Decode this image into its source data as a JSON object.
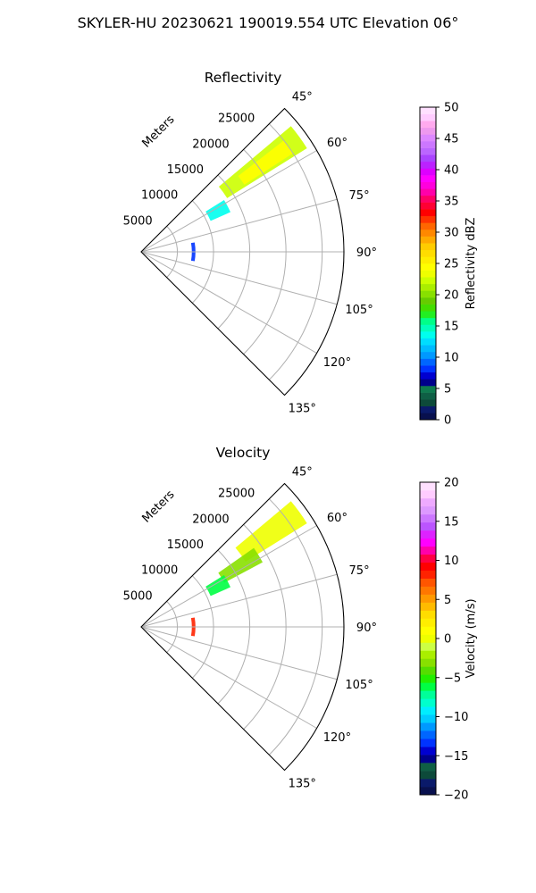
{
  "figure": {
    "title": "SKYLER-HU  20230621  190019.554 UTC Elevation 06°"
  },
  "chart_data": [
    {
      "type": "heatmap",
      "title": "Reflectivity",
      "radial_label": "Meters",
      "radial_ticks": [
        "5000",
        "10000",
        "15000",
        "20000",
        "25000"
      ],
      "angle_ticks": [
        "45°",
        "60°",
        "75°",
        "90°",
        "105°",
        "120°",
        "135°"
      ],
      "theta_range_deg": [
        45,
        135
      ],
      "r_range_m": [
        0,
        28000
      ],
      "colorbar": {
        "label": "Reflectivity dBZ",
        "ticks": [
          "0",
          "5",
          "10",
          "15",
          "20",
          "25",
          "30",
          "35",
          "40",
          "45",
          "50"
        ],
        "range": [
          0,
          50
        ],
        "colors": [
          "#08104e",
          "#0a1a6a",
          "#0d4a3a",
          "#0f5f45",
          "#0f7a4f",
          "#00008b",
          "#0000d0",
          "#0033ff",
          "#0066ff",
          "#0099ff",
          "#00bbff",
          "#00ddff",
          "#00ffee",
          "#00ffbb",
          "#00ff88",
          "#22ee22",
          "#44dd00",
          "#66cc00",
          "#88e000",
          "#aaee00",
          "#ccff00",
          "#eeff00",
          "#ffff00",
          "#ffee00",
          "#ffdd00",
          "#ffcc00",
          "#ffaa00",
          "#ff8800",
          "#ff6600",
          "#ff3300",
          "#ff0000",
          "#ff0033",
          "#ff0066",
          "#ff00aa",
          "#ff00dd",
          "#ff00ff",
          "#dd00ff",
          "#bb22ff",
          "#aa44ff",
          "#bb66ff",
          "#cc77ff",
          "#dd88ff",
          "#ee99ee",
          "#ffaaee",
          "#ffccff",
          "#ffe0ff"
        ]
      },
      "data_regions": [
        {
          "name": "green band",
          "value": 22,
          "theta": [
            50,
            58
          ],
          "r": [
            14000,
            27000
          ]
        },
        {
          "name": "yellow-green core",
          "value": 24,
          "theta": [
            52,
            57
          ],
          "r": [
            17000,
            25000
          ]
        },
        {
          "name": "cyan patch",
          "value": 14,
          "theta": [
            58,
            66
          ],
          "r": [
            10500,
            13500
          ]
        },
        {
          "name": "near-range cells",
          "value": 8,
          "theta": [
            80,
            100
          ],
          "r": [
            7000,
            7500
          ]
        }
      ]
    },
    {
      "type": "heatmap",
      "title": "Velocity",
      "radial_label": "Meters",
      "radial_ticks": [
        "5000",
        "10000",
        "15000",
        "20000",
        "25000"
      ],
      "angle_ticks": [
        "45°",
        "60°",
        "75°",
        "90°",
        "105°",
        "120°",
        "135°"
      ],
      "theta_range_deg": [
        45,
        135
      ],
      "r_range_m": [
        0,
        28000
      ],
      "colorbar": {
        "label": "Velocity (m/s)",
        "ticks": [
          "−20",
          "−15",
          "−10",
          "−5",
          "0",
          "5",
          "10",
          "15",
          "20"
        ],
        "range": [
          -20,
          20
        ],
        "colors": [
          "#08104e",
          "#0a1a6a",
          "#0d4a3a",
          "#0f5f45",
          "#00008b",
          "#0000d0",
          "#0033ff",
          "#0066ff",
          "#0099ff",
          "#00ccff",
          "#00eeff",
          "#00ffcc",
          "#00ff99",
          "#00ff44",
          "#22ee00",
          "#55dd00",
          "#88e000",
          "#aaee00",
          "#ccff44",
          "#eeff00",
          "#ffff00",
          "#ffee00",
          "#ffdd00",
          "#ffbb00",
          "#ff9900",
          "#ff7700",
          "#ff5500",
          "#ff2200",
          "#ff0000",
          "#ff0044",
          "#ff00aa",
          "#ff00ff",
          "#dd22ff",
          "#bb55ff",
          "#cc77ff",
          "#dd99ff",
          "#eeaaff",
          "#ffccff",
          "#ffe0ff"
        ]
      },
      "data_regions": [
        {
          "name": "yellow band",
          "value": 0,
          "theta": [
            50,
            58
          ],
          "r": [
            17000,
            27000
          ]
        },
        {
          "name": "light-green band",
          "value": -3,
          "theta": [
            55,
            62
          ],
          "r": [
            13000,
            19000
          ]
        },
        {
          "name": "green patch",
          "value": -6,
          "theta": [
            58,
            66
          ],
          "r": [
            10500,
            13500
          ]
        },
        {
          "name": "near-range cells",
          "value": 8,
          "theta": [
            80,
            100
          ],
          "r": [
            7000,
            7500
          ]
        }
      ]
    }
  ]
}
